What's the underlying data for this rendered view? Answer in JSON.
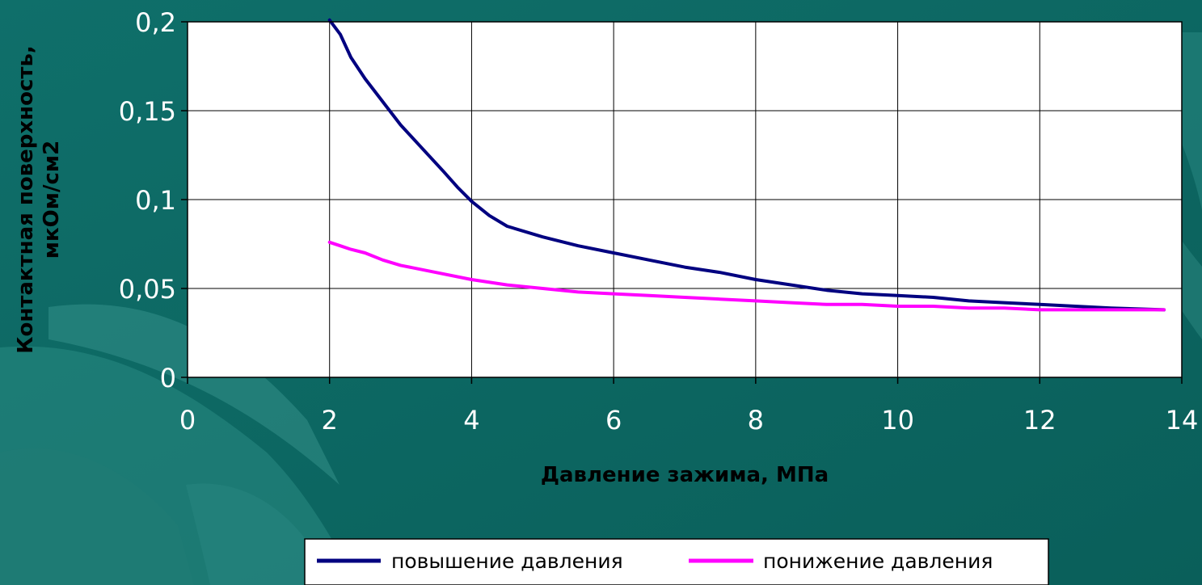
{
  "colors": {
    "background": "#0e6b66",
    "plot_area": "#ffffff",
    "grid": "#000000",
    "series_up": "#000080",
    "series_down": "#ff00ff"
  },
  "chart_data": {
    "type": "line",
    "title": "",
    "xlabel": "Давление зажима, МПа",
    "ylabel": [
      "Контактная поверхность,",
      "мкОм/см2"
    ],
    "xlim": [
      0,
      14
    ],
    "ylim": [
      0,
      0.2
    ],
    "x_ticks": [
      "0",
      "2",
      "4",
      "6",
      "8",
      "10",
      "12",
      "14"
    ],
    "y_ticks": [
      "0",
      "0,05",
      "0,1",
      "0,15",
      "0,2"
    ],
    "grid": true,
    "legend_position": "bottom",
    "series": [
      {
        "name": "повышение давления",
        "color": "#000080",
        "points": [
          [
            2.0,
            0.201
          ],
          [
            2.15,
            0.193
          ],
          [
            2.3,
            0.18
          ],
          [
            2.5,
            0.168
          ],
          [
            2.75,
            0.155
          ],
          [
            3.0,
            0.142
          ],
          [
            3.3,
            0.129
          ],
          [
            3.6,
            0.116
          ],
          [
            3.8,
            0.107
          ],
          [
            4.0,
            0.099
          ],
          [
            4.25,
            0.091
          ],
          [
            4.5,
            0.085
          ],
          [
            5.0,
            0.079
          ],
          [
            5.5,
            0.074
          ],
          [
            6.0,
            0.07
          ],
          [
            6.5,
            0.066
          ],
          [
            7.0,
            0.062
          ],
          [
            7.5,
            0.059
          ],
          [
            8.0,
            0.055
          ],
          [
            8.5,
            0.052
          ],
          [
            9.0,
            0.049
          ],
          [
            9.5,
            0.047
          ],
          [
            10.0,
            0.046
          ],
          [
            10.5,
            0.045
          ],
          [
            11.0,
            0.043
          ],
          [
            11.5,
            0.042
          ],
          [
            12.0,
            0.041
          ],
          [
            12.5,
            0.04
          ],
          [
            13.0,
            0.039
          ],
          [
            13.75,
            0.038
          ]
        ]
      },
      {
        "name": "понижение давления",
        "color": "#ff00ff",
        "points": [
          [
            2.0,
            0.076
          ],
          [
            2.15,
            0.074
          ],
          [
            2.3,
            0.072
          ],
          [
            2.5,
            0.07
          ],
          [
            2.75,
            0.066
          ],
          [
            3.0,
            0.063
          ],
          [
            3.5,
            0.059
          ],
          [
            4.0,
            0.055
          ],
          [
            4.5,
            0.052
          ],
          [
            5.0,
            0.05
          ],
          [
            5.5,
            0.048
          ],
          [
            6.0,
            0.047
          ],
          [
            6.5,
            0.046
          ],
          [
            7.0,
            0.045
          ],
          [
            7.5,
            0.044
          ],
          [
            8.0,
            0.043
          ],
          [
            8.5,
            0.042
          ],
          [
            9.0,
            0.041
          ],
          [
            9.5,
            0.041
          ],
          [
            10.0,
            0.04
          ],
          [
            10.5,
            0.04
          ],
          [
            11.0,
            0.039
          ],
          [
            11.5,
            0.039
          ],
          [
            12.0,
            0.038
          ],
          [
            12.5,
            0.038
          ],
          [
            13.0,
            0.038
          ],
          [
            13.75,
            0.038
          ]
        ]
      }
    ]
  }
}
